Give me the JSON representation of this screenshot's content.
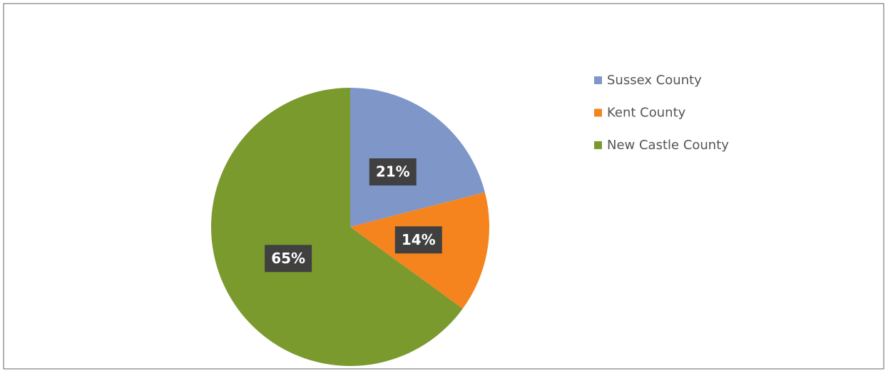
{
  "chart_data": {
    "type": "pie",
    "categories": [
      "Sussex County",
      "Kent County",
      "New Castle County"
    ],
    "values": [
      21,
      14,
      65
    ],
    "value_labels": [
      "21%",
      "14%",
      "65%"
    ],
    "colors": [
      "#7f96c9",
      "#f5841f",
      "#7a9a2e"
    ],
    "legend": "right"
  }
}
